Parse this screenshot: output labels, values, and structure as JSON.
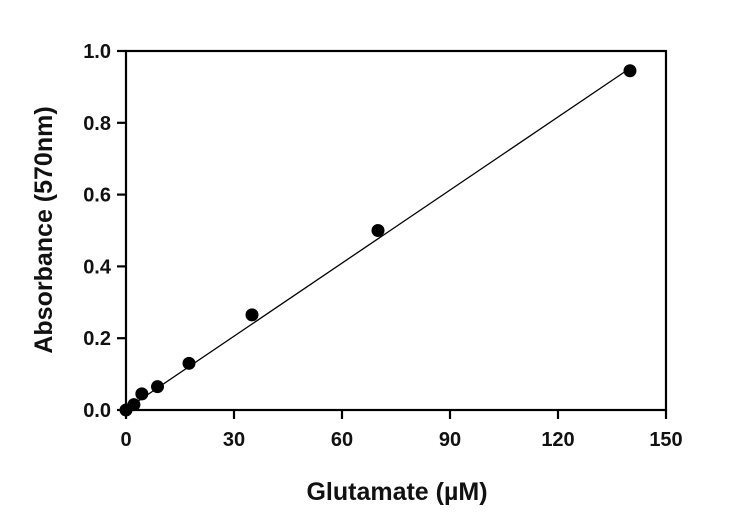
{
  "chart_data": {
    "type": "scatter",
    "title": "",
    "xlabel": "Glutamate (µM)",
    "ylabel": "Absorbance (570nm)",
    "xlim": [
      0,
      150
    ],
    "ylim": [
      0,
      1.0
    ],
    "x_ticks": [
      0,
      30,
      60,
      90,
      120,
      150
    ],
    "y_ticks": [
      0.0,
      0.2,
      0.4,
      0.6,
      0.8,
      1.0
    ],
    "x_tick_labels": [
      "0",
      "30",
      "60",
      "90",
      "120",
      "150"
    ],
    "y_tick_labels": [
      "0.0",
      "0.2",
      "0.4",
      "0.6",
      "0.8",
      "1.0"
    ],
    "grid": false,
    "legend": "none",
    "marker_color": "#000000",
    "series": [
      {
        "points": [
          {
            "x": 0,
            "y": 0.0
          },
          {
            "x": 2.2,
            "y": 0.015
          },
          {
            "x": 4.4,
            "y": 0.045
          },
          {
            "x": 8.75,
            "y": 0.065
          },
          {
            "x": 17.5,
            "y": 0.13
          },
          {
            "x": 35,
            "y": 0.265
          },
          {
            "x": 70,
            "y": 0.5
          },
          {
            "x": 140,
            "y": 0.945
          }
        ]
      }
    ],
    "fit_line": {
      "type": "linear",
      "x": [
        0,
        140
      ],
      "y": [
        0.002,
        0.952
      ]
    }
  }
}
